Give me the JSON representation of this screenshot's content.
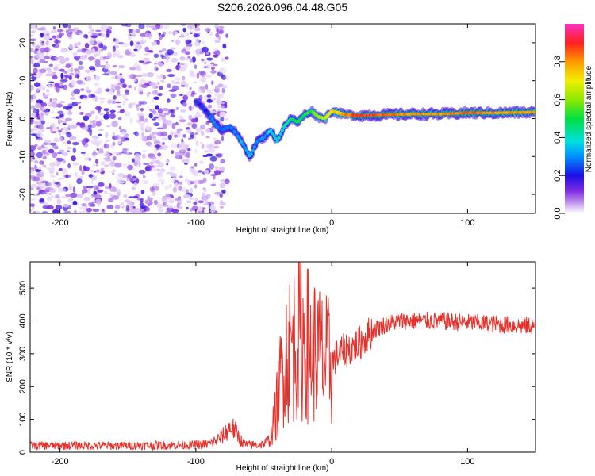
{
  "title": "S206.2026.096.04.48.G05",
  "chart_data": [
    {
      "type": "heatmap",
      "id": "spectrogram",
      "xlabel": "Height of straight line (km)",
      "ylabel": "Frequency (Hz)",
      "xlim": [
        -222,
        150
      ],
      "ylim": [
        -25,
        25
      ],
      "xticks": [
        -200,
        -100,
        0,
        100
      ],
      "xtick_labels": [
        "-200",
        "-100",
        "0",
        "100"
      ],
      "yticks": [
        20,
        10,
        0,
        -10,
        -20
      ],
      "ytick_labels": [
        "20",
        "10",
        "0",
        "-10",
        "-20"
      ],
      "colorbar": {
        "label": "Normalized spectral amplitude",
        "range": [
          0,
          1
        ],
        "ticks": [
          0.0,
          0.2,
          0.4,
          0.6,
          0.8
        ],
        "tick_labels": [
          "0.0",
          "0.2",
          "0.4",
          "0.6",
          "0.8"
        ]
      },
      "ridge": {
        "x": [
          -100,
          -95,
          -90,
          -85,
          -80,
          -75,
          -70,
          -65,
          -60,
          -55,
          -50,
          -45,
          -40,
          -35,
          -30,
          -25,
          -20,
          -15,
          -10,
          -5,
          0,
          5,
          10,
          20,
          40,
          60,
          80,
          100,
          120,
          150
        ],
        "freq": [
          4.5,
          3,
          1,
          -2,
          -3,
          -2,
          -4,
          -7,
          -10,
          -6,
          -5,
          -3,
          -6,
          -2,
          0,
          -1,
          1,
          2,
          0.5,
          0,
          2,
          1.5,
          1,
          0.8,
          1,
          1.2,
          1.2,
          1.5,
          1.5,
          1.7
        ],
        "amplitude": [
          0.2,
          0.22,
          0.25,
          0.3,
          0.28,
          0.3,
          0.3,
          0.32,
          0.35,
          0.3,
          0.3,
          0.35,
          0.4,
          0.4,
          0.45,
          0.5,
          0.5,
          0.55,
          0.6,
          0.65,
          0.7,
          0.75,
          0.8,
          0.9,
          0.85,
          0.8,
          0.8,
          0.85,
          0.8,
          0.8
        ]
      }
    },
    {
      "type": "line",
      "id": "snr",
      "xlabel": "Height of straight line (km)",
      "ylabel": "SNR (10 * v/v)",
      "xlim": [
        -222,
        150
      ],
      "ylim": [
        0,
        580
      ],
      "xticks": [
        -200,
        -100,
        0,
        100
      ],
      "xtick_labels": [
        "-200",
        "-100",
        "0",
        "100"
      ],
      "yticks": [
        0,
        100,
        200,
        300,
        400,
        500
      ],
      "ytick_labels": [
        "0",
        "100",
        "200",
        "300",
        "400",
        "500"
      ],
      "color": "#e8302b",
      "series": [
        {
          "name": "SNR",
          "x": [
            -222,
            -200,
            -150,
            -100,
            -90,
            -85,
            -80,
            -75,
            -72,
            -68,
            -65,
            -60,
            -55,
            -50,
            -45,
            -40,
            -35,
            -30,
            -25,
            -20,
            -15,
            -10,
            -5,
            0,
            5,
            10,
            20,
            30,
            40,
            50,
            60,
            80,
            100,
            120,
            140,
            150
          ],
          "y": [
            20,
            20,
            20,
            22,
            25,
            35,
            50,
            75,
            70,
            45,
            25,
            22,
            22,
            25,
            40,
            150,
            300,
            320,
            360,
            340,
            320,
            300,
            280,
            270,
            300,
            310,
            330,
            370,
            390,
            400,
            400,
            400,
            395,
            390,
            385,
            385
          ]
        }
      ]
    }
  ]
}
